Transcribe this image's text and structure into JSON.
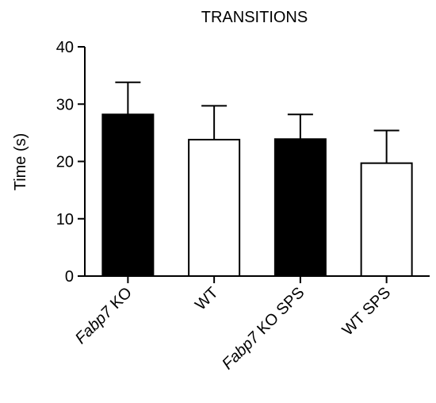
{
  "chart_data": {
    "type": "bar",
    "title": "TRANSITIONS",
    "ylabel": "Time (s)",
    "xlabel": "",
    "ylim": [
      0,
      40
    ],
    "yticks": [
      0,
      10,
      20,
      30,
      40
    ],
    "categories": [
      {
        "italic": "Fabp7",
        "rest": " KO"
      },
      {
        "italic": "",
        "rest": "WT"
      },
      {
        "italic": "Fabp7",
        "rest": " KO SPS"
      },
      {
        "italic": "",
        "rest": "WT SPS"
      }
    ],
    "values": [
      28.2,
      23.8,
      23.9,
      19.7
    ],
    "error_upper": [
      33.8,
      29.7,
      28.2,
      25.4
    ],
    "bar_fill": [
      "#000000",
      "#ffffff",
      "#000000",
      "#ffffff"
    ],
    "bar_stroke": "#000000",
    "grid": false,
    "legend": "none"
  }
}
